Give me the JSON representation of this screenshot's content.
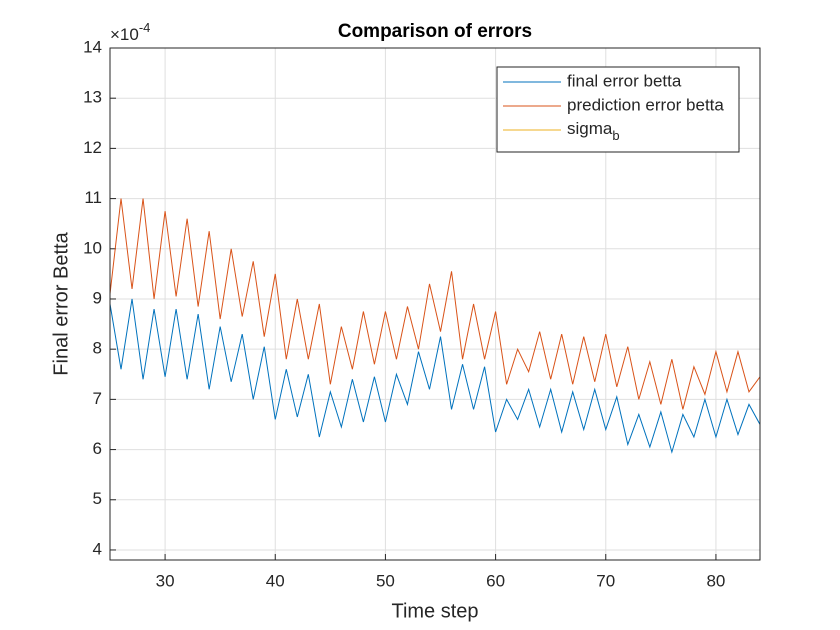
{
  "chart_data": {
    "type": "line",
    "title": "Comparison of errors",
    "xlabel": "Time step",
    "ylabel": "Final error Betta",
    "y_multiplier": {
      "base": "×10",
      "exponent": "-4"
    },
    "x": [
      25,
      26,
      27,
      28,
      29,
      30,
      31,
      32,
      33,
      34,
      35,
      36,
      37,
      38,
      39,
      40,
      41,
      42,
      43,
      44,
      45,
      46,
      47,
      48,
      49,
      50,
      51,
      52,
      53,
      54,
      55,
      56,
      57,
      58,
      59,
      60,
      61,
      62,
      63,
      64,
      65,
      66,
      67,
      68,
      69,
      70,
      71,
      72,
      73,
      74,
      75,
      76,
      77,
      78,
      79,
      80,
      81,
      82,
      83,
      84
    ],
    "series": [
      {
        "name": "final error betta",
        "color": "#0072bd",
        "values": [
          8.9,
          7.6,
          9.0,
          7.4,
          8.8,
          7.45,
          8.8,
          7.4,
          8.7,
          7.2,
          8.45,
          7.35,
          8.3,
          7.0,
          8.05,
          6.6,
          7.6,
          6.65,
          7.5,
          6.25,
          7.15,
          6.45,
          7.4,
          6.55,
          7.45,
          6.55,
          7.5,
          6.9,
          7.95,
          7.2,
          8.25,
          6.8,
          7.7,
          6.8,
          7.65,
          6.35,
          7.0,
          6.6,
          7.2,
          6.45,
          7.2,
          6.35,
          7.15,
          6.4,
          7.2,
          6.4,
          7.05,
          6.1,
          6.7,
          6.05,
          6.75,
          5.95,
          6.7,
          6.25,
          7.0,
          6.25,
          7.0,
          6.3,
          6.9,
          6.5
        ]
      },
      {
        "name": "prediction error betta",
        "color": "#d95319",
        "values": [
          9.1,
          11.0,
          9.2,
          11.0,
          9.0,
          10.75,
          9.05,
          10.6,
          8.85,
          10.35,
          8.6,
          10.0,
          8.65,
          9.75,
          8.25,
          9.5,
          7.8,
          9.0,
          7.8,
          8.9,
          7.3,
          8.45,
          7.6,
          8.75,
          7.7,
          8.75,
          7.8,
          8.85,
          8.0,
          9.3,
          8.35,
          9.55,
          7.8,
          8.9,
          7.8,
          8.75,
          7.3,
          8.0,
          7.55,
          8.35,
          7.4,
          8.3,
          7.3,
          8.25,
          7.35,
          8.3,
          7.25,
          8.05,
          7.0,
          7.75,
          6.9,
          7.8,
          6.8,
          7.65,
          7.1,
          7.95,
          7.15,
          7.95,
          7.15,
          7.45
        ]
      },
      {
        "name": "sigma_b",
        "color": "#edb120",
        "values": [
          null,
          null,
          null,
          null,
          null,
          null,
          null,
          null,
          null,
          null,
          null,
          null,
          null,
          null,
          null,
          null,
          null,
          null,
          null,
          null,
          null,
          null,
          null,
          null,
          null,
          null,
          null,
          null,
          null,
          null,
          null,
          null,
          null,
          null,
          null,
          null,
          null,
          null,
          null,
          null,
          null,
          null,
          null,
          null,
          null,
          null,
          null,
          null,
          null,
          null,
          null,
          null,
          null,
          null,
          null,
          null,
          null,
          null,
          null,
          null
        ]
      }
    ],
    "xlim": [
      25,
      84
    ],
    "ylim": [
      3.8,
      14
    ],
    "xticks": [
      30,
      40,
      50,
      60,
      70,
      80
    ],
    "yticks": [
      4,
      5,
      6,
      7,
      8,
      9,
      10,
      11,
      12,
      13,
      14
    ],
    "grid": true,
    "legend": "top-right"
  }
}
